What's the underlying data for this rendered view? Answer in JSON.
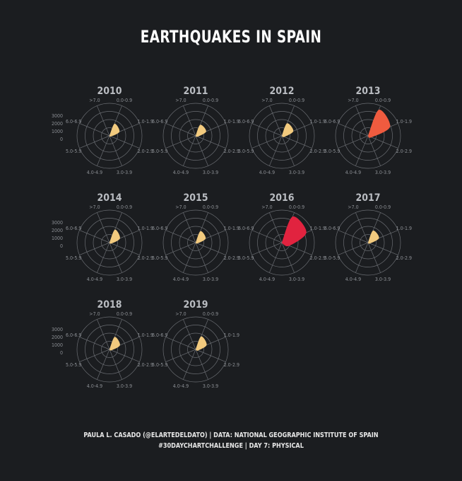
{
  "title": "EARTHQUAKES IN SPAIN",
  "footer": {
    "line1": "PAULA L. CASADO (@ELARTEDELDATO)  |  DATA: NATIONAL GEOGRAPHIC INSTITUTE OF SPAIN",
    "line2": "#30DAYCHARTCHALLENGE  |  DAY 7: PHYSICAL"
  },
  "colors": {
    "background": "#1b1d20",
    "grid": "#6a6d72",
    "label": "#8c8f94",
    "year": "#b9bcc1",
    "low": "#f2ca7e",
    "mid": "#ef5b3f",
    "high": "#e1233f"
  },
  "chart_data": {
    "type": "radar",
    "categories": [
      "0.0-0.9",
      "1.0-1.9",
      "2.0-2.9",
      "3.0-3.9",
      "4.0-4.9",
      "5.0-5.9",
      "6.0-6.9",
      ">7.0"
    ],
    "radial_ticks": [
      "3000",
      "2000",
      "1000",
      "0"
    ],
    "rlim": [
      0,
      3000
    ],
    "series": [
      {
        "name": "2010",
        "color": "#f2ca7e",
        "values": [
          1200,
          1000,
          150,
          10,
          1,
          0,
          0,
          0
        ]
      },
      {
        "name": "2011",
        "color": "#f2ca7e",
        "values": [
          1100,
          1050,
          200,
          15,
          1,
          0,
          0,
          0
        ]
      },
      {
        "name": "2012",
        "color": "#f2ca7e",
        "values": [
          1250,
          1150,
          250,
          20,
          1,
          0,
          0,
          0
        ]
      },
      {
        "name": "2013",
        "color": "#ef5b3f",
        "values": [
          2600,
          2200,
          350,
          30,
          2,
          0,
          0,
          0
        ]
      },
      {
        "name": "2014",
        "color": "#f2ca7e",
        "values": [
          1300,
          1050,
          200,
          15,
          1,
          0,
          0,
          0
        ]
      },
      {
        "name": "2015",
        "color": "#f2ca7e",
        "values": [
          1150,
          1000,
          180,
          12,
          1,
          0,
          0,
          0
        ]
      },
      {
        "name": "2016",
        "color": "#e1233f",
        "values": [
          2600,
          2450,
          750,
          60,
          3,
          0,
          0,
          0
        ]
      },
      {
        "name": "2017",
        "color": "#f2ca7e",
        "values": [
          1200,
          1100,
          200,
          15,
          1,
          0,
          0,
          0
        ]
      },
      {
        "name": "2018",
        "color": "#f2ca7e",
        "values": [
          1250,
          1050,
          200,
          15,
          1,
          0,
          0,
          0
        ]
      },
      {
        "name": "2019",
        "color": "#f2ca7e",
        "values": [
          1300,
          1100,
          250,
          20,
          1,
          0,
          0,
          0
        ]
      }
    ]
  }
}
